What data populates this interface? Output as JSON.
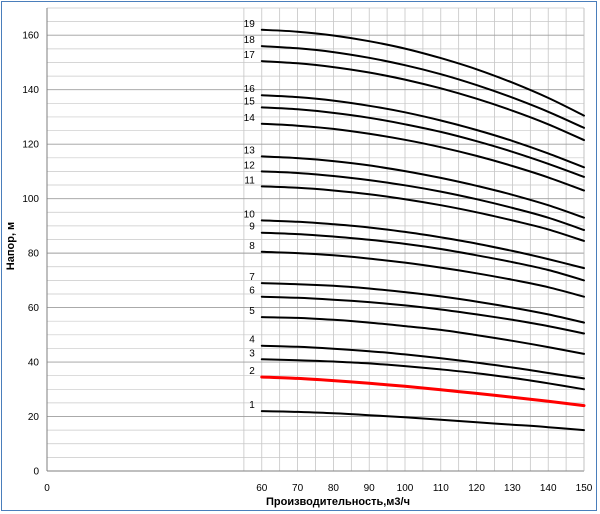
{
  "chart_data": {
    "type": "line",
    "xlabel": "Производительность,м3/ч",
    "ylabel": "Напор, м",
    "xlim": [
      0,
      150
    ],
    "ylim": [
      0,
      170
    ],
    "x_ticks": [
      0,
      60,
      70,
      80,
      90,
      100,
      110,
      120,
      130,
      140,
      150
    ],
    "y_ticks": [
      0,
      20,
      40,
      60,
      80,
      100,
      120,
      140,
      160
    ],
    "grid": true,
    "x": [
      60,
      70,
      80,
      90,
      100,
      110,
      120,
      130,
      140,
      150
    ],
    "highlight_color": "#ff0000",
    "line_color": "#000000",
    "series": [
      {
        "name": "1",
        "values": [
          22.0,
          21.7,
          21.2,
          20.5,
          19.7,
          18.8,
          17.9,
          17.0,
          16.1,
          15.0
        ]
      },
      {
        "name": "2",
        "values": [
          34.5,
          34.0,
          33.2,
          32.2,
          31.1,
          29.8,
          28.5,
          27.1,
          25.6,
          24.0
        ],
        "highlight": true
      },
      {
        "name": "3",
        "values": [
          41.0,
          40.7,
          40.2,
          39.5,
          38.5,
          37.3,
          35.9,
          34.2,
          32.2,
          30.0
        ]
      },
      {
        "name": "4",
        "values": [
          46.0,
          45.6,
          44.9,
          44.0,
          42.8,
          41.4,
          39.8,
          38.0,
          36.0,
          34.0
        ]
      },
      {
        "name": "5",
        "values": [
          56.5,
          56.2,
          55.5,
          54.5,
          53.2,
          51.8,
          49.9,
          47.8,
          45.5,
          43.0
        ]
      },
      {
        "name": "6",
        "values": [
          64.0,
          63.6,
          62.9,
          62.0,
          60.8,
          59.3,
          57.5,
          55.5,
          53.2,
          50.5
        ]
      },
      {
        "name": "7",
        "values": [
          69.0,
          68.6,
          68.0,
          67.0,
          65.7,
          64.1,
          62.2,
          60.0,
          57.5,
          54.5
        ]
      },
      {
        "name": "8",
        "values": [
          80.5,
          80.0,
          79.2,
          78.0,
          76.5,
          74.7,
          72.6,
          70.2,
          67.5,
          64.0
        ]
      },
      {
        "name": "9",
        "values": [
          87.5,
          87.0,
          86.1,
          84.9,
          83.4,
          81.5,
          79.2,
          76.7,
          73.8,
          70.0
        ]
      },
      {
        "name": "10",
        "values": [
          92.0,
          91.5,
          90.6,
          89.4,
          87.8,
          85.8,
          83.5,
          80.8,
          77.8,
          74.5
        ]
      },
      {
        "name": "11",
        "values": [
          104.5,
          104.0,
          103.0,
          101.6,
          99.8,
          97.6,
          95.0,
          92.0,
          88.7,
          84.5
        ]
      },
      {
        "name": "12",
        "values": [
          110.0,
          109.4,
          108.3,
          106.8,
          104.9,
          102.6,
          99.8,
          96.6,
          93.0,
          88.5
        ]
      },
      {
        "name": "13",
        "values": [
          115.5,
          114.9,
          113.8,
          112.2,
          110.1,
          107.6,
          104.7,
          101.4,
          97.6,
          93.0
        ]
      },
      {
        "name": "14",
        "values": [
          127.5,
          126.8,
          125.6,
          123.8,
          121.6,
          118.9,
          115.7,
          112.0,
          107.8,
          103.0
        ]
      },
      {
        "name": "15",
        "values": [
          133.5,
          132.8,
          131.5,
          129.7,
          127.3,
          124.5,
          121.1,
          117.2,
          112.8,
          108.0
        ]
      },
      {
        "name": "16",
        "values": [
          138.0,
          137.3,
          136.0,
          134.1,
          131.7,
          128.7,
          125.2,
          121.2,
          116.6,
          111.5
        ]
      },
      {
        "name": "17",
        "values": [
          150.5,
          149.7,
          148.3,
          146.3,
          143.7,
          140.5,
          136.7,
          132.3,
          127.3,
          121.5
        ]
      },
      {
        "name": "18",
        "values": [
          156.0,
          155.2,
          153.8,
          151.7,
          149.0,
          145.7,
          141.7,
          137.1,
          131.9,
          126.0
        ]
      },
      {
        "name": "19",
        "values": [
          162.0,
          161.3,
          159.9,
          157.8,
          155.1,
          151.6,
          147.5,
          142.6,
          137.0,
          130.5
        ]
      }
    ]
  }
}
